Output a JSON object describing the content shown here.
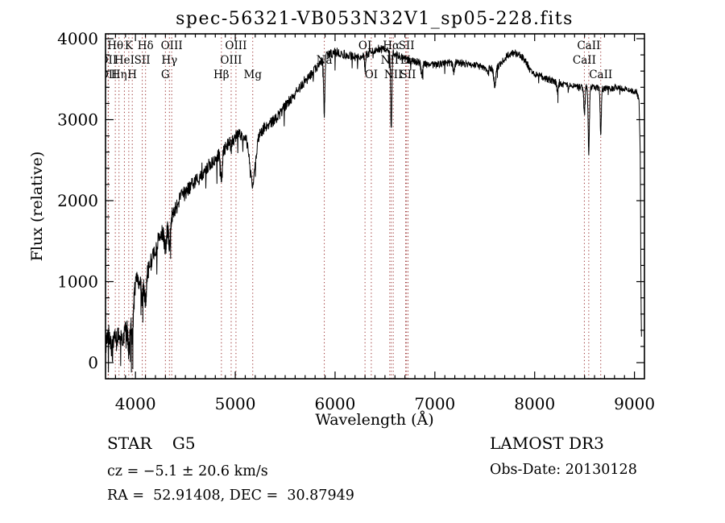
{
  "window": {
    "title": "spec-56321-VB053N32V1_sp05-228.fits"
  },
  "chart_data": {
    "type": "line",
    "title": "spec-56321-VB053N32V1_sp05-228.fits",
    "xlabel": "Wavelength (Å)",
    "ylabel": "Flux (relative)",
    "xlim": [
      3700,
      9100
    ],
    "ylim": [
      0,
      4000
    ],
    "x_ticks": [
      4000,
      5000,
      6000,
      7000,
      8000,
      9000
    ],
    "y_ticks": [
      0,
      1000,
      2000,
      3000,
      4000
    ],
    "x_minor_step": 100,
    "y_minor_step": 200,
    "grid": false,
    "line_color": "#000000",
    "marker_line_color": "#9b3333",
    "spectral_lines": [
      {
        "label": "OII",
        "wavelength": 3727,
        "row": 2
      },
      {
        "label": "OII",
        "wavelength": 3729,
        "row": 3
      },
      {
        "label": "Hθ",
        "wavelength": 3798,
        "row": 1
      },
      {
        "label": "Hη",
        "wavelength": 3835,
        "row": 3
      },
      {
        "label": "HeI",
        "wavelength": 3889,
        "row": 2
      },
      {
        "label": "K",
        "wavelength": 3933,
        "row": 1
      },
      {
        "label": "H",
        "wavelength": 3968,
        "row": 3
      },
      {
        "label": "SII",
        "wavelength": 4068,
        "row": 2
      },
      {
        "label": "Hδ",
        "wavelength": 4101,
        "row": 1
      },
      {
        "label": "G",
        "wavelength": 4300,
        "row": 3
      },
      {
        "label": "Hγ",
        "wavelength": 4340,
        "row": 2
      },
      {
        "label": "OIII",
        "wavelength": 4363,
        "row": 1
      },
      {
        "label": "Hβ",
        "wavelength": 4861,
        "row": 3
      },
      {
        "label": "OIII",
        "wavelength": 4959,
        "row": 2
      },
      {
        "label": "OIII",
        "wavelength": 5007,
        "row": 1
      },
      {
        "label": "Mg",
        "wavelength": 5175,
        "row": 3
      },
      {
        "label": "Na",
        "wavelength": 5892,
        "row": 2
      },
      {
        "label": "OI",
        "wavelength": 6300,
        "row": 1
      },
      {
        "label": "OI",
        "wavelength": 6363,
        "row": 3
      },
      {
        "label": "NII",
        "wavelength": 6548,
        "row": 2
      },
      {
        "label": "Hα",
        "wavelength": 6563,
        "row": 1
      },
      {
        "label": "NII",
        "wavelength": 6583,
        "row": 3
      },
      {
        "label": "Li",
        "wavelength": 6707,
        "row": 2
      },
      {
        "label": "SII",
        "wavelength": 6716,
        "row": 1
      },
      {
        "label": "SII",
        "wavelength": 6731,
        "row": 3
      },
      {
        "label": "CaII",
        "wavelength": 8498,
        "row": 2
      },
      {
        "label": "CaII",
        "wavelength": 8542,
        "row": 1
      },
      {
        "label": "CaII",
        "wavelength": 8662,
        "row": 3
      }
    ],
    "continuum_points": [
      [
        3700,
        180
      ],
      [
        3735,
        330
      ],
      [
        3765,
        140
      ],
      [
        3795,
        270
      ],
      [
        3830,
        300
      ],
      [
        3870,
        300
      ],
      [
        3910,
        400
      ],
      [
        3945,
        430
      ],
      [
        3975,
        600
      ],
      [
        4000,
        1000
      ],
      [
        4030,
        1000
      ],
      [
        4060,
        920
      ],
      [
        4090,
        1000
      ],
      [
        4130,
        1150
      ],
      [
        4180,
        1330
      ],
      [
        4240,
        1550
      ],
      [
        4310,
        1700
      ],
      [
        4380,
        1850
      ],
      [
        4450,
        2020
      ],
      [
        4550,
        2180
      ],
      [
        4650,
        2300
      ],
      [
        4750,
        2460
      ],
      [
        4850,
        2580
      ],
      [
        4950,
        2720
      ],
      [
        5030,
        2810
      ],
      [
        5100,
        2790
      ],
      [
        5160,
        2700
      ],
      [
        5230,
        2830
      ],
      [
        5320,
        2920
      ],
      [
        5420,
        3030
      ],
      [
        5520,
        3200
      ],
      [
        5620,
        3350
      ],
      [
        5720,
        3500
      ],
      [
        5820,
        3650
      ],
      [
        5920,
        3790
      ],
      [
        6020,
        3840
      ],
      [
        6120,
        3790
      ],
      [
        6220,
        3770
      ],
      [
        6320,
        3810
      ],
      [
        6420,
        3880
      ],
      [
        6520,
        3860
      ],
      [
        6620,
        3800
      ],
      [
        6720,
        3740
      ],
      [
        6820,
        3710
      ],
      [
        6920,
        3680
      ],
      [
        7020,
        3680
      ],
      [
        7120,
        3700
      ],
      [
        7220,
        3710
      ],
      [
        7320,
        3690
      ],
      [
        7420,
        3670
      ],
      [
        7520,
        3630
      ],
      [
        7620,
        3640
      ],
      [
        7720,
        3780
      ],
      [
        7800,
        3830
      ],
      [
        7860,
        3800
      ],
      [
        7920,
        3700
      ],
      [
        7960,
        3590
      ],
      [
        8050,
        3540
      ],
      [
        8150,
        3490
      ],
      [
        8250,
        3450
      ],
      [
        8350,
        3420
      ],
      [
        8450,
        3400
      ],
      [
        8550,
        3400
      ],
      [
        8650,
        3390
      ],
      [
        8750,
        3380
      ],
      [
        8850,
        3400
      ],
      [
        8950,
        3370
      ],
      [
        9020,
        3350
      ],
      [
        9045,
        3250
      ],
      [
        9058,
        2600
      ],
      [
        9066,
        800
      ],
      [
        9072,
        60
      ]
    ],
    "absorption_features": [
      [
        3933,
        250,
        7
      ],
      [
        3968,
        230,
        7
      ],
      [
        4068,
        150,
        6
      ],
      [
        4101,
        300,
        9
      ],
      [
        4300,
        280,
        11
      ],
      [
        4340,
        300,
        9
      ],
      [
        4861,
        330,
        9
      ],
      [
        4959,
        80,
        6
      ],
      [
        5175,
        520,
        28
      ],
      [
        5892,
        680,
        6
      ],
      [
        6300,
        200,
        5
      ],
      [
        6563,
        950,
        6
      ],
      [
        6870,
        160,
        8
      ],
      [
        7190,
        120,
        8
      ],
      [
        7600,
        220,
        10
      ],
      [
        8230,
        120,
        8
      ],
      [
        8498,
        330,
        6
      ],
      [
        8542,
        820,
        6
      ],
      [
        8662,
        560,
        6
      ]
    ],
    "noise_amplitude_profile": [
      [
        3700,
        170
      ],
      [
        4050,
        120
      ],
      [
        4500,
        95
      ],
      [
        5300,
        70
      ],
      [
        6000,
        56
      ],
      [
        6800,
        46
      ],
      [
        9100,
        42
      ]
    ]
  },
  "annotations": {
    "class_label": "STAR    G5",
    "cz": "cz = −5.1 ± 20.6 km/s",
    "radec": "RA =  52.91408, DEC =  30.87949",
    "survey": "LAMOST DR3",
    "obs_date": "Obs-Date: 20130128"
  }
}
